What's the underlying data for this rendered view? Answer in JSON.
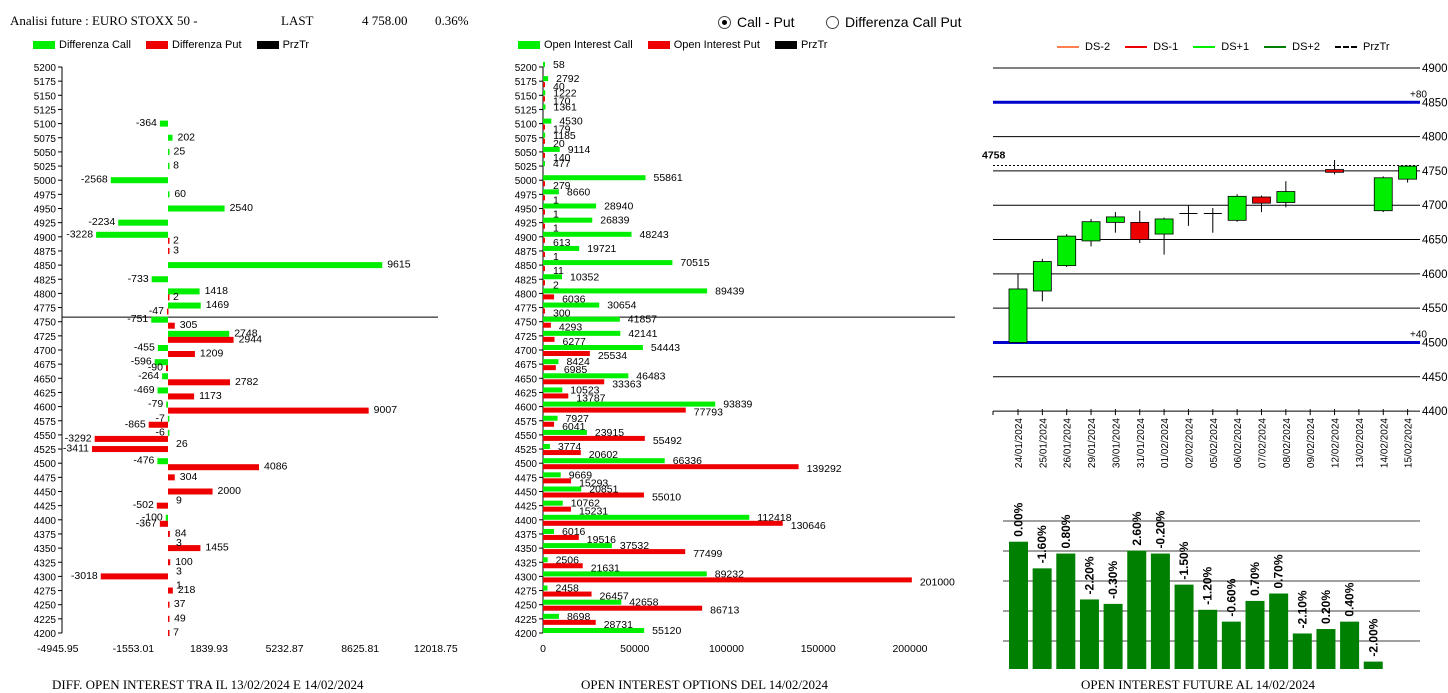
{
  "header": {
    "title": "Analisi future : EURO STOXX 50 -",
    "last_label": "LAST",
    "last_value": "4 758.00",
    "change": "0.36%"
  },
  "radios": {
    "option1": "Call - Put",
    "option2": "Differenza Call Put",
    "selected": "Call - Put"
  },
  "colors": {
    "green": "#00ee00",
    "red": "#ee0000",
    "dark_green": "#008000",
    "blue": "#0000cc"
  },
  "legend_diff": [
    "Differenza Call",
    "Differenza Put",
    "PrzTr"
  ],
  "legend_oi": [
    "Open Interest Call",
    "Open Interest Put",
    "PrzTr"
  ],
  "legend_candle": [
    "DS-2",
    "DS-1",
    "DS+1",
    "DS+2",
    "PrzTr"
  ],
  "captions": {
    "left": "DIFF. OPEN INTEREST TRA IL 13/02/2024 E 14/02/2024",
    "middle": "OPEN INTEREST OPTIONS DEL 14/02/2024",
    "right": "OPEN INTEREST FUTURE AL 14/02/2024"
  },
  "chart_data": [
    {
      "type": "bar",
      "title": "DIFF. OPEN INTEREST TRA IL 13/02/2024 E 14/02/2024",
      "orientation": "horizontal",
      "strikes": [
        5200,
        5175,
        5150,
        5125,
        5100,
        5075,
        5050,
        5025,
        5000,
        4975,
        4950,
        4925,
        4900,
        4875,
        4850,
        4825,
        4800,
        4775,
        4750,
        4725,
        4700,
        4675,
        4650,
        4625,
        4600,
        4575,
        4550,
        4525,
        4500,
        4475,
        4450,
        4425,
        4400,
        4375,
        4350,
        4325,
        4300,
        4275,
        4250,
        4225,
        4200
      ],
      "x_ticks": [
        "-4945.95",
        "-1553.01",
        "1839.93",
        "5232.87",
        "8625.81",
        "12018.75"
      ],
      "xlim": [
        -4945.95,
        12018.75
      ],
      "przTr": 4758,
      "series": [
        {
          "name": "Differenza Call",
          "values": [
            null,
            null,
            null,
            null,
            -364,
            202,
            25,
            8,
            -2568,
            60,
            2540,
            -2234,
            -3228,
            null,
            9615,
            -733,
            1418,
            1469,
            -751,
            2748,
            -455,
            -596,
            -264,
            -469,
            -79,
            -7,
            -6,
            null,
            -476,
            null,
            null,
            null,
            -100,
            null,
            null,
            null,
            null,
            null,
            null,
            null,
            null
          ]
        },
        {
          "name": "Differenza Put",
          "values": [
            null,
            null,
            null,
            null,
            null,
            null,
            null,
            null,
            null,
            null,
            null,
            null,
            2,
            3,
            null,
            null,
            2,
            -47,
            305,
            2944,
            1209,
            -90,
            2782,
            1173,
            9007,
            -865,
            -3292,
            -3411,
            4086,
            304,
            2000,
            -502,
            -367,
            84,
            1455,
            100,
            -3018,
            218,
            37,
            49,
            7
          ]
        },
        {
          "name": "Differenza Call (label only)",
          "values": [
            null,
            null,
            null,
            null,
            null,
            null,
            null,
            null,
            null,
            null,
            null,
            null,
            null,
            null,
            null,
            null,
            null,
            null,
            null,
            null,
            null,
            null,
            null,
            null,
            null,
            null,
            null,
            26,
            null,
            null,
            null,
            9,
            null,
            null,
            3,
            null,
            3,
            1,
            null,
            null,
            null
          ]
        }
      ]
    },
    {
      "type": "bar",
      "title": "OPEN INTEREST OPTIONS DEL 14/02/2024",
      "orientation": "horizontal",
      "strikes": [
        5200,
        5175,
        5150,
        5125,
        5100,
        5075,
        5050,
        5025,
        5000,
        4975,
        4950,
        4925,
        4900,
        4875,
        4850,
        4825,
        4800,
        4775,
        4750,
        4725,
        4700,
        4675,
        4650,
        4625,
        4600,
        4575,
        4550,
        4525,
        4500,
        4475,
        4450,
        4425,
        4400,
        4375,
        4350,
        4325,
        4300,
        4275,
        4250,
        4225,
        4200
      ],
      "x_ticks": [
        "0",
        "50000",
        "100000",
        "150000",
        "200000"
      ],
      "xlim": [
        0,
        225000
      ],
      "przTr": 4758,
      "series": [
        {
          "name": "Open Interest Call",
          "values": [
            58,
            2792,
            1222,
            1361,
            4530,
            1185,
            9114,
            477,
            55861,
            8660,
            28940,
            26839,
            48243,
            19721,
            70515,
            10352,
            89439,
            30654,
            41857,
            42141,
            54443,
            8424,
            46483,
            10523,
            93839,
            7927,
            23915,
            3774,
            66336,
            9669,
            20851,
            10762,
            112418,
            6016,
            37532,
            2506,
            89232,
            2458,
            42658,
            8698,
            55120
          ]
        },
        {
          "name": "Open Interest Put",
          "values": [
            null,
            40,
            170,
            null,
            179,
            20,
            140,
            null,
            279,
            1,
            1,
            1,
            613,
            1,
            11,
            2,
            6036,
            300,
            4293,
            6277,
            25534,
            6985,
            33363,
            13787,
            77793,
            6041,
            55492,
            20602,
            139292,
            15293,
            55010,
            15231,
            130646,
            19516,
            77499,
            21631,
            201000,
            26457,
            86713,
            28731,
            null
          ]
        }
      ]
    },
    {
      "type": "candlestick",
      "dates": [
        "24/01/2024",
        "25/01/2024",
        "26/01/2024",
        "29/01/2024",
        "30/01/2024",
        "31/01/2024",
        "01/02/2024",
        "02/02/2024",
        "05/02/2024",
        "06/02/2024",
        "07/02/2024",
        "08/02/2024",
        "09/02/2024",
        "12/02/2024",
        "13/02/2024",
        "14/02/2024",
        "15/02/2024"
      ],
      "candles": [
        {
          "open": 4500,
          "close": 4578,
          "high": 4600,
          "low": 4500
        },
        {
          "open": 4575,
          "close": 4618,
          "high": 4622,
          "low": 4560
        },
        {
          "open": 4612,
          "close": 4655,
          "high": 4658,
          "low": 4610
        },
        {
          "open": 4648,
          "close": 4676,
          "high": 4680,
          "low": 4640
        },
        {
          "open": 4675,
          "close": 4683,
          "high": 4690,
          "low": 4660
        },
        {
          "open": 4675,
          "close": 4650,
          "high": 4692,
          "low": 4645
        },
        {
          "open": 4658,
          "close": 4680,
          "high": 4682,
          "low": 4628
        },
        {
          "open": 4688,
          "close": 4688,
          "high": 4700,
          "low": 4670
        },
        {
          "open": 4688,
          "close": 4688,
          "high": 4696,
          "low": 4660
        },
        {
          "open": 4678,
          "close": 4713,
          "high": 4716,
          "low": 4676
        },
        {
          "open": 4712,
          "close": 4703,
          "high": 4714,
          "low": 4690
        },
        {
          "open": 4704,
          "close": 4720,
          "high": 4735,
          "low": 4697
        },
        {
          "open": null,
          "close": null,
          "high": null,
          "low": null
        },
        {
          "open": 4752,
          "close": 4748,
          "high": 4766,
          "low": 4745
        },
        {
          "open": null,
          "close": null,
          "high": null,
          "low": null
        },
        {
          "open": 4692,
          "close": 4740,
          "high": 4742,
          "low": 4690
        },
        {
          "open": 4738,
          "close": 4757,
          "high": 4758,
          "low": 4733
        }
      ],
      "y_ticks": [
        4900,
        4850,
        4800,
        4750,
        4700,
        4650,
        4600,
        4550,
        4500,
        4450,
        4400
      ],
      "ylim": [
        4400,
        4900
      ],
      "przTr": 4758,
      "przTr_label": "4758",
      "bands": [
        {
          "value": 4850,
          "label": "+80"
        },
        {
          "value": 4500,
          "label": "+40"
        }
      ],
      "legend": [
        "DS-2",
        "DS-1",
        "DS+1",
        "DS+2",
        "PrzTr"
      ]
    },
    {
      "type": "bar",
      "title": "OPEN INTEREST FUTURE AL 14/02/2024",
      "labels": [
        "0.00%",
        "-1.60%",
        "0.80%",
        "-2.20%",
        "-0.30%",
        "2.60%",
        "-0.20%",
        "-1.50%",
        "-1.20%",
        "-0.60%",
        "0.70%",
        "0.70%",
        "-2.10%",
        "0.20%",
        "0.40%",
        "-2.00%"
      ],
      "relative_heights": [
        0.86,
        0.68,
        0.78,
        0.47,
        0.44,
        0.8,
        0.78,
        0.57,
        0.4,
        0.32,
        0.46,
        0.51,
        0.24,
        0.27,
        0.32,
        0.05
      ]
    }
  ]
}
